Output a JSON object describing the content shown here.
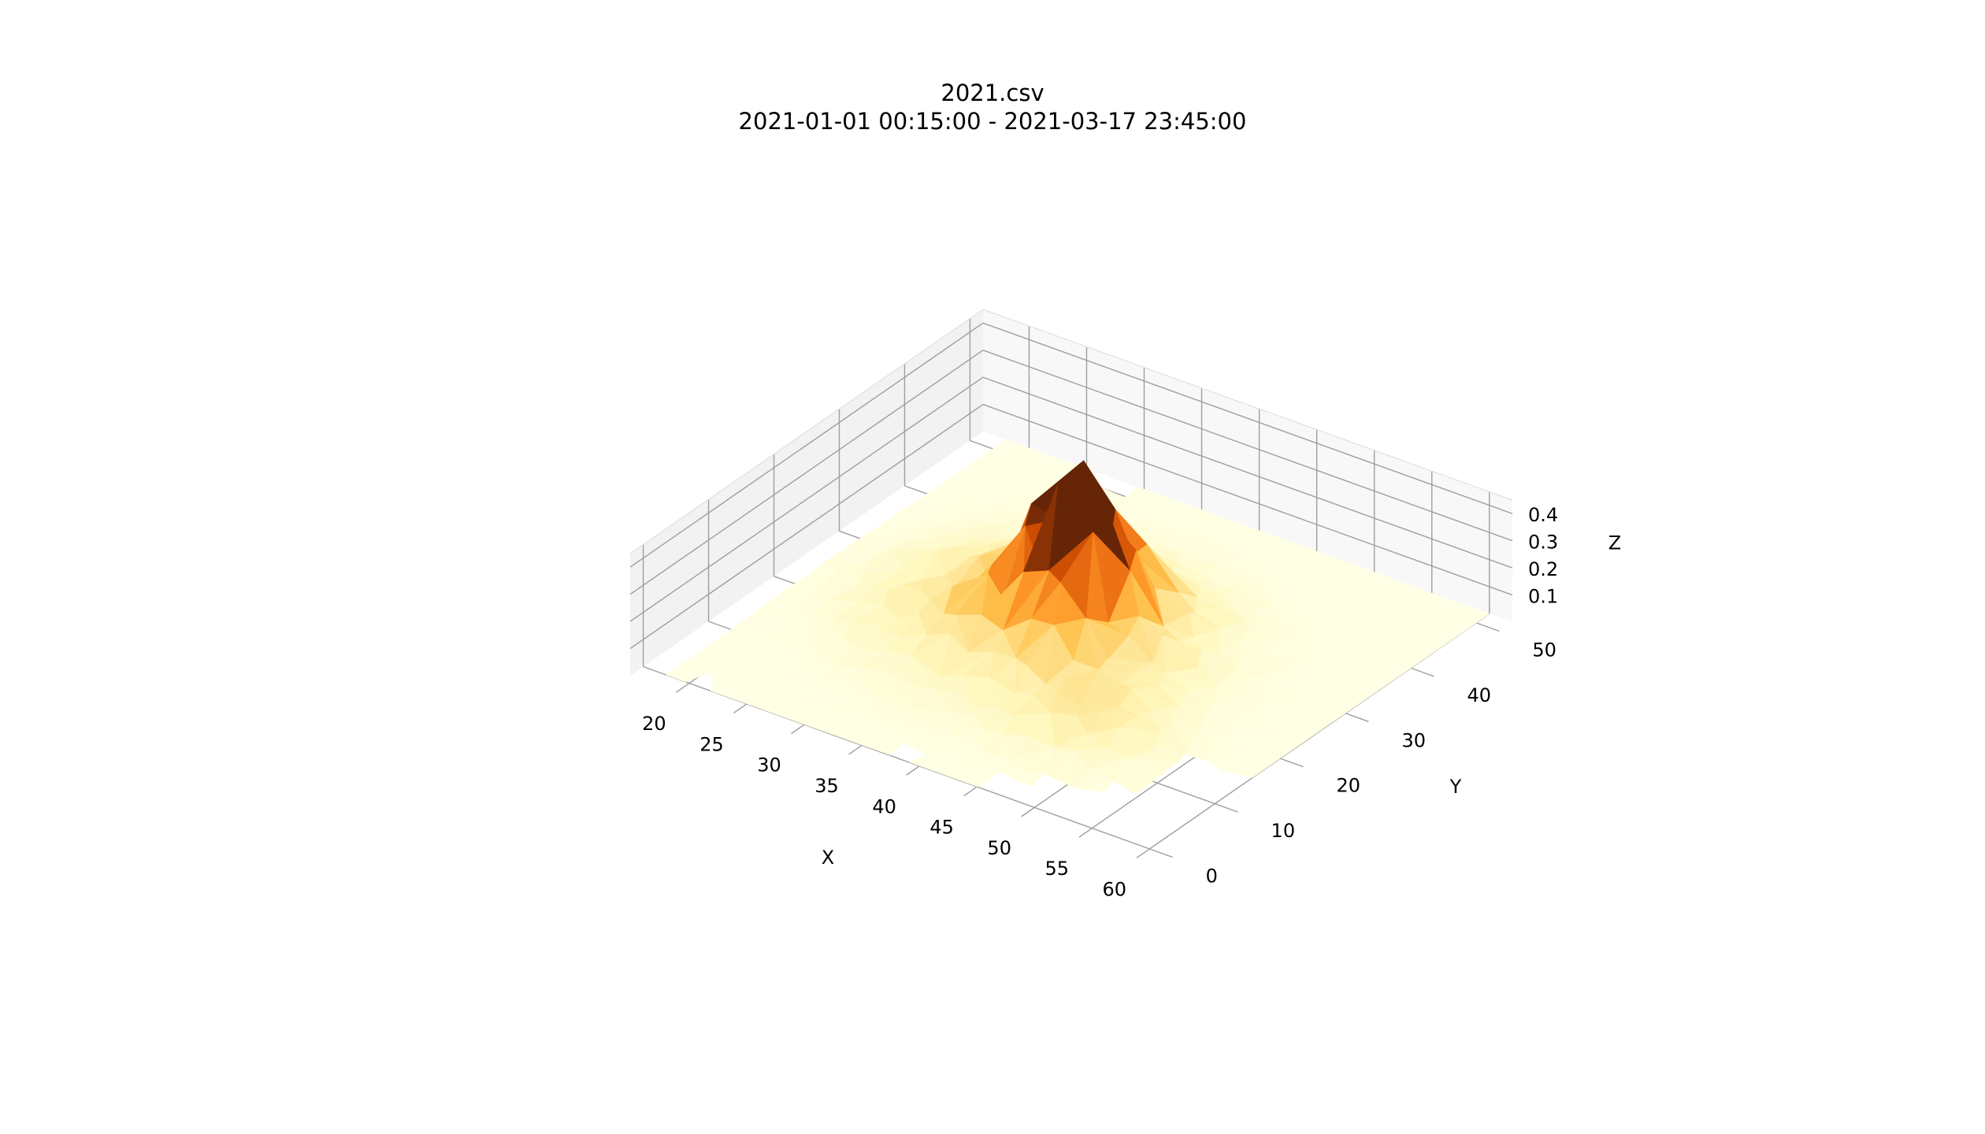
{
  "chart_data": {
    "type": "surface3d",
    "title": "2021.csv",
    "subtitle": "2021-01-01 00:15:00 - 2021-03-17 23:45:00",
    "xlabel": "X",
    "ylabel": "Y",
    "zlabel": "Z",
    "xlim": [
      16,
      62
    ],
    "ylim": [
      -2,
      52
    ],
    "zlim": [
      0.0,
      0.45
    ],
    "x_ticks": [
      20,
      25,
      30,
      35,
      40,
      45,
      50,
      55,
      60
    ],
    "y_ticks": [
      0,
      10,
      20,
      30,
      40,
      50
    ],
    "z_ticks": [
      0.1,
      0.2,
      0.3,
      0.4
    ],
    "colormap": "YlOrBr",
    "colors": {
      "low": "#ffffe5",
      "mid": "#fe9929",
      "high": "#662506",
      "grid": "#cccccc",
      "pane_edge": "#555555"
    },
    "grid": true,
    "peak": {
      "x": 39,
      "y": 27,
      "z": 0.42
    }
  }
}
